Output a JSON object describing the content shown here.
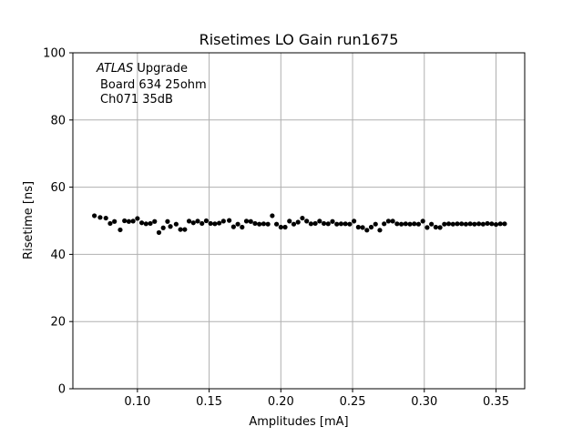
{
  "chart_data": {
    "type": "scatter",
    "title": "Risetimes LO Gain run1675",
    "xlabel": "Amplitudes [mA]",
    "ylabel": "Risetime [ns]",
    "xlim": [
      0.055,
      0.37
    ],
    "ylim": [
      0,
      100
    ],
    "xticks": [
      "0.10",
      "0.15",
      "0.20",
      "0.25",
      "0.30",
      "0.35"
    ],
    "xtick_values": [
      0.1,
      0.15,
      0.2,
      0.25,
      0.3,
      0.35
    ],
    "yticks": [
      "0",
      "20",
      "40",
      "60",
      "80",
      "100"
    ],
    "ytick_values": [
      0,
      20,
      40,
      60,
      80,
      100
    ],
    "grid": true,
    "marker_color": "#000000",
    "annotation": {
      "line1_italic": "ATLAS",
      "line1_rest": " Upgrade",
      "line2": "Board 634 25ohm",
      "line3": "Ch071 35dB"
    },
    "x": [
      0.07,
      0.074,
      0.078,
      0.081,
      0.084,
      0.088,
      0.091,
      0.094,
      0.097,
      0.1,
      0.103,
      0.106,
      0.109,
      0.112,
      0.115,
      0.118,
      0.121,
      0.123,
      0.127,
      0.13,
      0.133,
      0.136,
      0.139,
      0.142,
      0.145,
      0.148,
      0.151,
      0.154,
      0.157,
      0.16,
      0.164,
      0.167,
      0.17,
      0.173,
      0.176,
      0.179,
      0.182,
      0.185,
      0.188,
      0.191,
      0.194,
      0.197,
      0.2,
      0.203,
      0.206,
      0.209,
      0.212,
      0.215,
      0.218,
      0.221,
      0.224,
      0.227,
      0.23,
      0.233,
      0.236,
      0.239,
      0.242,
      0.245,
      0.248,
      0.251,
      0.254,
      0.257,
      0.26,
      0.263,
      0.266,
      0.269,
      0.272,
      0.275,
      0.278,
      0.281,
      0.284,
      0.287,
      0.29,
      0.293,
      0.296,
      0.299,
      0.302,
      0.305,
      0.308,
      0.311,
      0.314,
      0.317,
      0.32,
      0.323,
      0.326,
      0.329,
      0.332,
      0.335,
      0.338,
      0.341,
      0.344,
      0.347,
      0.35,
      0.353,
      0.356
    ],
    "y": [
      51.5,
      51.0,
      50.8,
      49.2,
      49.8,
      47.3,
      50.0,
      49.8,
      49.9,
      50.7,
      49.4,
      49.1,
      49.2,
      49.8,
      46.5,
      47.9,
      49.8,
      48.3,
      49.0,
      47.4,
      47.4,
      49.9,
      49.4,
      49.9,
      49.2,
      50.0,
      49.2,
      49.1,
      49.3,
      49.9,
      50.1,
      48.2,
      49.0,
      48.1,
      49.9,
      49.8,
      49.2,
      49.0,
      49.1,
      49.0,
      51.5,
      49.0,
      48.1,
      48.1,
      49.9,
      49.0,
      49.6,
      50.8,
      49.9,
      49.1,
      49.2,
      49.9,
      49.2,
      49.1,
      49.8,
      49.0,
      49.1,
      49.1,
      49.0,
      49.9,
      48.1,
      48.0,
      47.2,
      48.1,
      49.0,
      47.2,
      49.1,
      49.9,
      49.9,
      49.1,
      49.0,
      49.1,
      49.0,
      49.1,
      49.0,
      49.9,
      48.0,
      49.0,
      48.1,
      48.0,
      49.0,
      49.1,
      49.0,
      49.1,
      49.1,
      49.0,
      49.1,
      49.0,
      49.1,
      49.0,
      49.2,
      49.1,
      48.9,
      49.1,
      49.1
    ]
  }
}
